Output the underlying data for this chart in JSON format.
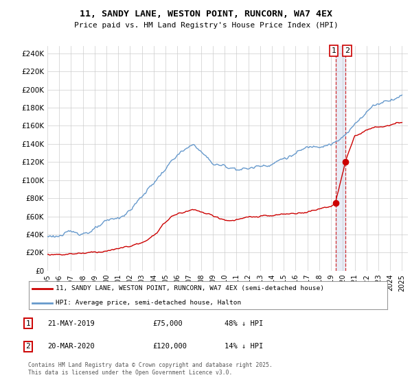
{
  "title": "11, SANDY LANE, WESTON POINT, RUNCORN, WA7 4EX",
  "subtitle": "Price paid vs. HM Land Registry's House Price Index (HPI)",
  "ylabel_ticks": [
    "£0",
    "£20K",
    "£40K",
    "£60K",
    "£80K",
    "£100K",
    "£120K",
    "£140K",
    "£160K",
    "£180K",
    "£200K",
    "£220K",
    "£240K"
  ],
  "ytick_values": [
    0,
    20000,
    40000,
    60000,
    80000,
    100000,
    120000,
    140000,
    160000,
    180000,
    200000,
    220000,
    240000
  ],
  "ylim": [
    0,
    248000
  ],
  "xlim_start": 1995.0,
  "xlim_end": 2025.5,
  "legend_line1": "11, SANDY LANE, WESTON POINT, RUNCORN, WA7 4EX (semi-detached house)",
  "legend_line2": "HPI: Average price, semi-detached house, Halton",
  "transaction1_label": "1",
  "transaction1_date": "21-MAY-2019",
  "transaction1_price": "£75,000",
  "transaction1_hpi": "48% ↓ HPI",
  "transaction2_label": "2",
  "transaction2_date": "20-MAR-2020",
  "transaction2_price": "£120,000",
  "transaction2_hpi": "14% ↓ HPI",
  "footer": "Contains HM Land Registry data © Crown copyright and database right 2025.\nThis data is licensed under the Open Government Licence v3.0.",
  "red_line_color": "#cc0000",
  "blue_line_color": "#6699cc",
  "dashed_line_color": "#cc0000",
  "shade_color": "#aabbdd",
  "background_color": "#ffffff",
  "grid_color": "#cccccc",
  "transaction1_x": 2019.38,
  "transaction1_y": 75000,
  "transaction2_x": 2020.22,
  "transaction2_y": 120000,
  "xticks": [
    1995,
    1996,
    1997,
    1998,
    1999,
    2000,
    2001,
    2002,
    2003,
    2004,
    2005,
    2006,
    2007,
    2008,
    2009,
    2010,
    2011,
    2012,
    2013,
    2014,
    2015,
    2016,
    2017,
    2018,
    2019,
    2020,
    2021,
    2022,
    2023,
    2024,
    2025
  ],
  "hpi_anchors_x": [
    1995.0,
    1996.0,
    1997.0,
    1998.0,
    1999.0,
    2000.0,
    2001.0,
    2002.0,
    2003.0,
    2004.5,
    2006.0,
    2007.5,
    2009.0,
    2010.0,
    2011.0,
    2012.0,
    2013.0,
    2014.0,
    2015.5,
    2017.0,
    2018.5,
    2019.5,
    2020.5,
    2021.5,
    2022.5,
    2023.5,
    2025.0
  ],
  "hpi_anchors_y": [
    38000,
    39500,
    41000,
    43000,
    46000,
    52000,
    57000,
    67000,
    82000,
    105000,
    128000,
    138000,
    118000,
    115000,
    114000,
    113000,
    116000,
    120000,
    127000,
    135000,
    142000,
    143000,
    152000,
    170000,
    182000,
    188000,
    195000
  ],
  "red_anchors_x": [
    1995.0,
    1996.0,
    1997.5,
    1999.0,
    2001.0,
    2003.5,
    2005.5,
    2007.5,
    2009.0,
    2010.5,
    2012.0,
    2014.0,
    2016.0,
    2017.5,
    2019.0,
    2019.38,
    2020.22,
    2021.0,
    2022.0,
    2023.0,
    2024.0,
    2025.0
  ],
  "red_anchors_y": [
    18000,
    18500,
    19500,
    21000,
    24000,
    32000,
    60000,
    68000,
    60000,
    55000,
    58000,
    60000,
    63000,
    67000,
    72000,
    75000,
    120000,
    148000,
    155000,
    158000,
    160000,
    163000
  ]
}
